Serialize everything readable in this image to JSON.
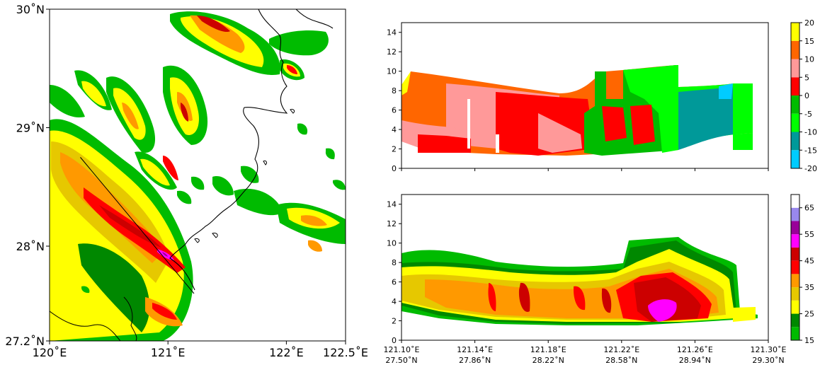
{
  "chart_data": [
    {
      "type": "heatmap",
      "panel": "radar-reflectivity-map",
      "xlim": [
        120.0,
        122.5
      ],
      "ylim": [
        27.2,
        30.0
      ],
      "x_ticks": [
        {
          "value": 120.0,
          "label": "120˚E"
        },
        {
          "value": 121.0,
          "label": "121˚E"
        },
        {
          "value": 122.0,
          "label": "122˚E"
        },
        {
          "value": 122.5,
          "label": "122.5˚E"
        }
      ],
      "y_ticks": [
        {
          "value": 27.2,
          "label": "27.2˚N"
        },
        {
          "value": 28.0,
          "label": "28˚N"
        },
        {
          "value": 29.0,
          "label": "29˚N"
        },
        {
          "value": 30.0,
          "label": "30˚N"
        }
      ],
      "cross_section_line": {
        "start": [
          120.26,
          28.75
        ],
        "end": [
          121.22,
          27.6
        ]
      }
    },
    {
      "type": "heatmap",
      "panel": "radial-velocity-cross-section",
      "ylim": [
        0,
        15
      ],
      "y_ticks": [
        0,
        2,
        4,
        6,
        8,
        10,
        12,
        14
      ],
      "colorbar": {
        "ticks": [
          "-20",
          "-15",
          "-10",
          "-5",
          "0",
          "5",
          "10",
          "15",
          "20"
        ],
        "bins": [
          {
            "range": [
              -20,
              -15
            ],
            "color": "#00ccff"
          },
          {
            "range": [
              -15,
              -10
            ],
            "color": "#009999"
          },
          {
            "range": [
              -10,
              -5
            ],
            "color": "#00ff00"
          },
          {
            "range": [
              -5,
              0
            ],
            "color": "#00bb00"
          },
          {
            "range": [
              0,
              5
            ],
            "color": "#ff0000"
          },
          {
            "range": [
              5,
              10
            ],
            "color": "#ff9999"
          },
          {
            "range": [
              10,
              15
            ],
            "color": "#ff6600"
          },
          {
            "range": [
              15,
              20
            ],
            "color": "#ffff00"
          }
        ]
      }
    },
    {
      "type": "heatmap",
      "panel": "reflectivity-cross-section",
      "ylim": [
        0,
        15
      ],
      "y_ticks": [
        0,
        2,
        4,
        6,
        8,
        10,
        12,
        14
      ],
      "x_ticks": [
        {
          "lon": "121.10˚E",
          "lat": "27.50˚N"
        },
        {
          "lon": "121.14˚E",
          "lat": "27.86˚N"
        },
        {
          "lon": "121.18˚E",
          "lat": "28.22˚N"
        },
        {
          "lon": "121.22˚E",
          "lat": "28.58˚N"
        },
        {
          "lon": "121.26˚E",
          "lat": "28.94˚N"
        },
        {
          "lon": "121.30˚E",
          "lat": "29.30˚N"
        }
      ],
      "colorbar": {
        "ticks": [
          "15",
          "25",
          "35",
          "45",
          "55",
          "65"
        ],
        "bins": [
          {
            "range": [
              15,
              20
            ],
            "color": "#00bb00"
          },
          {
            "range": [
              20,
              25
            ],
            "color": "#008800"
          },
          {
            "range": [
              25,
              30
            ],
            "color": "#ffff00"
          },
          {
            "range": [
              30,
              35
            ],
            "color": "#e6c800"
          },
          {
            "range": [
              35,
              40
            ],
            "color": "#ff9900"
          },
          {
            "range": [
              40,
              45
            ],
            "color": "#ff0000"
          },
          {
            "range": [
              45,
              50
            ],
            "color": "#cc0000"
          },
          {
            "range": [
              50,
              55
            ],
            "color": "#ff00ff"
          },
          {
            "range": [
              55,
              60
            ],
            "color": "#990099"
          },
          {
            "range": [
              60,
              65
            ],
            "color": "#9988ee"
          },
          {
            "range": [
              65,
              70
            ],
            "color": "#ffffff"
          }
        ]
      }
    }
  ]
}
